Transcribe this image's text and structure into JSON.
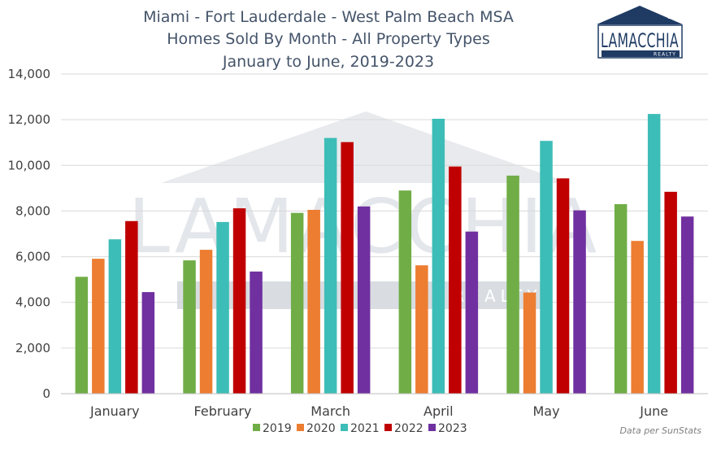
{
  "chart_data": {
    "type": "bar",
    "title_lines": [
      "Miami - Fort Lauderdale - West Palm Beach MSA",
      "Homes Sold By Month - All Property Types",
      "January to June, 2019-2023"
    ],
    "categories": [
      "January",
      "February",
      "March",
      "April",
      "May",
      "June"
    ],
    "series": [
      {
        "name": "2019",
        "color": "#70ad47",
        "values": [
          5120,
          5840,
          7920,
          8900,
          9550,
          8300
        ]
      },
      {
        "name": "2020",
        "color": "#ed7d31",
        "values": [
          5910,
          6300,
          8050,
          5620,
          4430,
          6690
        ]
      },
      {
        "name": "2021",
        "color": "#3dbdb7",
        "values": [
          6760,
          7520,
          11200,
          12040,
          11070,
          12250
        ]
      },
      {
        "name": "2022",
        "color": "#c00000",
        "values": [
          7560,
          8120,
          11020,
          9950,
          9430,
          8840
        ]
      },
      {
        "name": "2023",
        "color": "#7030a0",
        "values": [
          4450,
          5350,
          8200,
          7100,
          8030,
          7760
        ]
      }
    ],
    "ylim": [
      0,
      14000
    ],
    "yticks": [
      0,
      2000,
      4000,
      6000,
      8000,
      10000,
      12000,
      14000
    ],
    "ytick_labels": [
      "0",
      "2,000",
      "4,000",
      "6,000",
      "8,000",
      "10,000",
      "12,000",
      "14,000"
    ],
    "grid": true,
    "legend_position": "bottom",
    "source_note": "Data per SunStats"
  },
  "logo": {
    "wordmark": "LAMACCHIA",
    "subline": "REALTY",
    "color": "#1f3b64"
  },
  "watermark": {
    "wordmark": "LAMACCHIA",
    "subline": "REALTY",
    "color": "#e3e6ea"
  }
}
